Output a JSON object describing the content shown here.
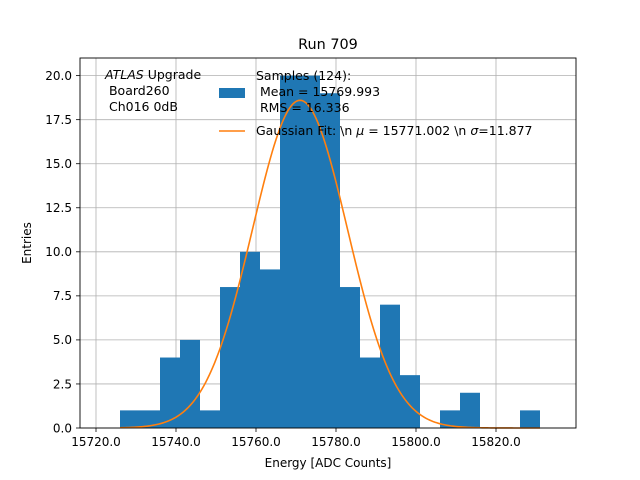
{
  "chart_data": {
    "type": "bar",
    "title": "Run 709",
    "xlabel": "Energy [ADC Counts]",
    "ylabel": "Entries",
    "xlim": [
      15716,
      15840
    ],
    "ylim": [
      0,
      21
    ],
    "grid": true,
    "legend_position": "top-right",
    "x_ticks": [
      15720,
      15740,
      15760,
      15780,
      15800,
      15820
    ],
    "x_tick_labels": [
      "15720.0",
      "15740.0",
      "15760.0",
      "15780.0",
      "15800.0",
      "15820.0"
    ],
    "y_ticks": [
      0,
      2.5,
      5,
      7.5,
      10,
      12.5,
      15,
      17.5,
      20
    ],
    "y_tick_labels": [
      "0.0",
      "2.5",
      "5.0",
      "7.5",
      "10.0",
      "12.5",
      "15.0",
      "17.5",
      "20.0"
    ],
    "bin_width": 5,
    "bin_edges": [
      15726,
      15731,
      15736,
      15741,
      15746,
      15751,
      15756,
      15761,
      15766,
      15771,
      15776,
      15781,
      15786,
      15791,
      15796,
      15801,
      15806,
      15811,
      15816,
      15821,
      15826,
      15831
    ],
    "counts": [
      1,
      1,
      4,
      5,
      1,
      8,
      10,
      9,
      20,
      20,
      19,
      8,
      4,
      7,
      3,
      0,
      1,
      2,
      0,
      0,
      1
    ],
    "series": [
      {
        "name": "Samples (124):\n Mean = 15769.993\n RMS = 16.336",
        "kind": "histogram",
        "color": "#1f77b4"
      },
      {
        "name": "Gaussian Fit: \\n $\\mu$ = 15771.002 \\n $\\sigma$=11.877",
        "kind": "line",
        "color": "#ff7f0e",
        "mu": 15771.002,
        "sigma": 11.877,
        "amplitude": 18.6,
        "x_range": [
          15726,
          15831
        ]
      }
    ],
    "annotation": {
      "italic": "ATLAS",
      "rest": " Upgrade",
      "line2": " Board260",
      "line3": " Ch016 0dB"
    },
    "legend": {
      "hist_line1": "Samples (124):",
      "hist_line2": " Mean = 15769.993",
      "hist_line3": " RMS = 16.336",
      "fit_pre": "Gaussian Fit: \\n ",
      "fit_mu": "μ",
      "fit_mid": " = 15771.002 \\n ",
      "fit_sigma": "σ",
      "fit_post": "=11.877"
    }
  }
}
